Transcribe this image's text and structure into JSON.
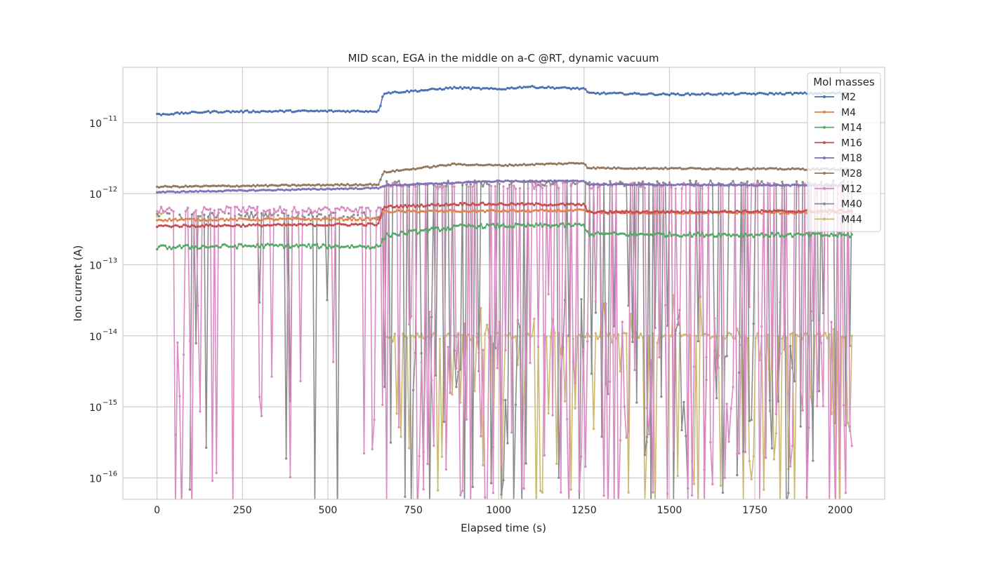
{
  "chart_data": {
    "type": "line",
    "title": "MID scan, EGA in the middle on a-C @RT, dynamic vacuum",
    "xlabel": "Elapsed time (s)",
    "ylabel": "Ion current (A)",
    "xlim": [
      -100,
      2130
    ],
    "ylim": [
      5e-17,
      6e-11
    ],
    "yscale": "log",
    "grid": true,
    "x_ticks": [
      0,
      250,
      500,
      750,
      1000,
      1250,
      1500,
      1750,
      2000
    ],
    "y_ticks": [
      {
        "value": 1e-16,
        "base": "10",
        "exp": "−16"
      },
      {
        "value": 1e-15,
        "base": "10",
        "exp": "−15"
      },
      {
        "value": 1e-14,
        "base": "10",
        "exp": "−14"
      },
      {
        "value": 1e-13,
        "base": "10",
        "exp": "−13"
      },
      {
        "value": 1e-12,
        "base": "10",
        "exp": "−12"
      },
      {
        "value": 1e-11,
        "base": "10",
        "exp": "−11"
      }
    ],
    "legend": {
      "title": "Mol masses",
      "position": "upper-right"
    },
    "series": [
      {
        "name": "M2",
        "color": "#4c72b0",
        "kind": "stable",
        "levels": [
          [
            0,
            1.3e-11
          ],
          [
            150,
            1.42e-11
          ],
          [
            400,
            1.45e-11
          ],
          [
            650,
            1.45e-11
          ],
          [
            662,
            2.6e-11
          ],
          [
            800,
            2.9e-11
          ],
          [
            870,
            3.1e-11
          ],
          [
            1000,
            2.95e-11
          ],
          [
            1080,
            3.2e-11
          ],
          [
            1250,
            3e-11
          ],
          [
            1262,
            2.6e-11
          ],
          [
            1500,
            2.5e-11
          ],
          [
            2030,
            2.6e-11
          ]
        ],
        "noise": 0.03
      },
      {
        "name": "M4",
        "color": "#dd8452",
        "kind": "stable",
        "levels": [
          [
            0,
            4.3e-13
          ],
          [
            650,
            4.4e-13
          ],
          [
            662,
            5.6e-13
          ],
          [
            1250,
            5.8e-13
          ],
          [
            1262,
            5.4e-13
          ],
          [
            2030,
            5.4e-13
          ]
        ],
        "noise": 0.04
      },
      {
        "name": "M14",
        "color": "#55a868",
        "kind": "stable",
        "levels": [
          [
            0,
            1.75e-13
          ],
          [
            300,
            1.85e-13
          ],
          [
            650,
            1.8e-13
          ],
          [
            670,
            2.6e-13
          ],
          [
            900,
            3.5e-13
          ],
          [
            1250,
            3.6e-13
          ],
          [
            1262,
            2.7e-13
          ],
          [
            2030,
            2.6e-13
          ]
        ],
        "noise": 0.07
      },
      {
        "name": "M16",
        "color": "#c44e52",
        "kind": "stable",
        "levels": [
          [
            0,
            3.5e-13
          ],
          [
            650,
            3.7e-13
          ],
          [
            662,
            6.5e-13
          ],
          [
            900,
            7.2e-13
          ],
          [
            1250,
            7e-13
          ],
          [
            1262,
            5.5e-13
          ],
          [
            2030,
            5.7e-13
          ]
        ],
        "noise": 0.04
      },
      {
        "name": "M18",
        "color": "#8172b3",
        "kind": "stable",
        "levels": [
          [
            0,
            1.05e-12
          ],
          [
            650,
            1.2e-12
          ],
          [
            662,
            1.3e-12
          ],
          [
            1000,
            1.5e-12
          ],
          [
            1250,
            1.5e-12
          ],
          [
            1262,
            1.35e-12
          ],
          [
            2030,
            1.3e-12
          ]
        ],
        "noise": 0.02
      },
      {
        "name": "M28",
        "color": "#937860",
        "kind": "stable",
        "levels": [
          [
            0,
            1.25e-12
          ],
          [
            650,
            1.35e-12
          ],
          [
            662,
            2e-12
          ],
          [
            870,
            2.6e-12
          ],
          [
            1000,
            2.5e-12
          ],
          [
            1250,
            2.7e-12
          ],
          [
            1262,
            2.3e-12
          ],
          [
            2030,
            2.2e-12
          ]
        ],
        "noise": 0.025
      },
      {
        "name": "M12",
        "color": "#da8bc3",
        "kind": "noisy",
        "base": 6e-13,
        "base_after": 1.3e-12,
        "drop_prob": 0.18,
        "drop_prob_after": 0.55
      },
      {
        "name": "M40",
        "color": "#8c8c8c",
        "kind": "noisy",
        "base": 5e-13,
        "base_after": 1.4e-12,
        "drop_prob": 0.1,
        "drop_prob_after": 0.45
      },
      {
        "name": "M44",
        "color": "#ccb974",
        "kind": "noisy",
        "base": 5e-13,
        "base_after": 1e-14,
        "drop_prob": 0.0,
        "drop_prob_after": 0.35
      }
    ]
  }
}
